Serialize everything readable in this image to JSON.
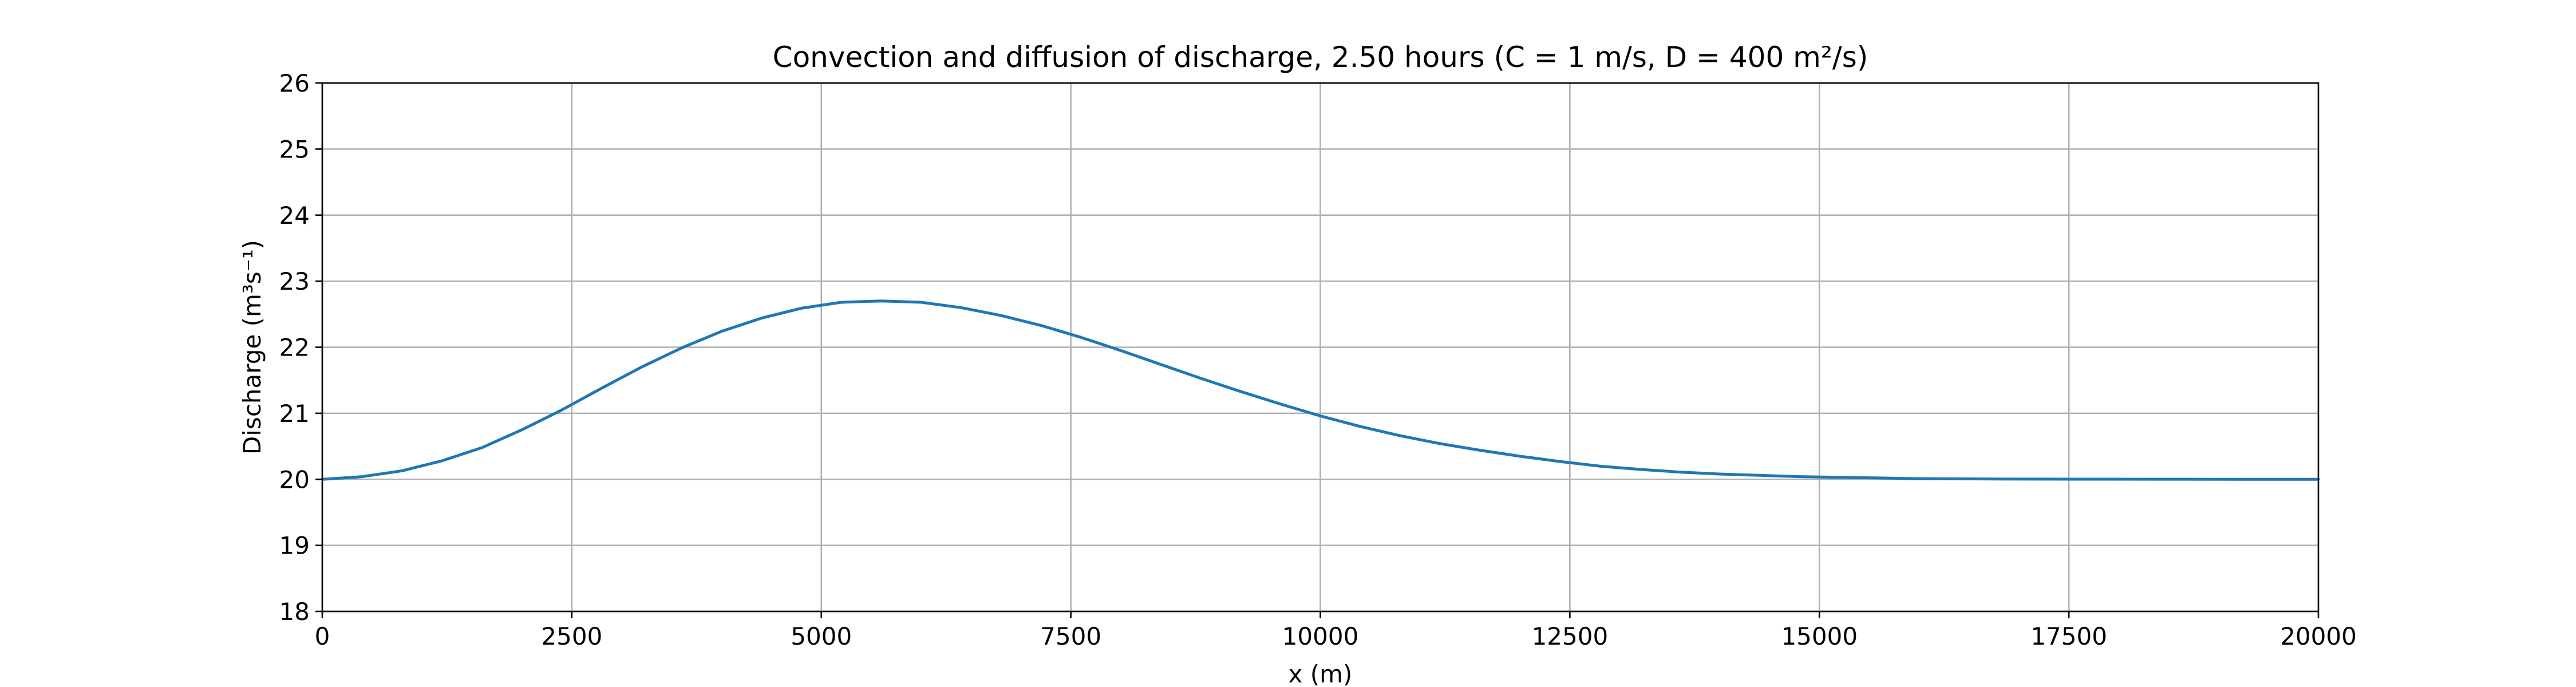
{
  "chart_data": {
    "type": "line",
    "title": "Convection and diffusion of discharge, 2.50 hours (C = 1 m/s, D = 400 m²/s)",
    "xlabel": "x (m)",
    "ylabel": "Discharge (m³s⁻¹)",
    "xlim": [
      0,
      20000
    ],
    "ylim": [
      18,
      26
    ],
    "xticks": [
      0,
      2500,
      5000,
      7500,
      10000,
      12500,
      15000,
      17500,
      20000
    ],
    "xtick_labels": [
      "0",
      "2500",
      "5000",
      "7500",
      "10000",
      "12500",
      "15000",
      "17500",
      "20000"
    ],
    "yticks": [
      18,
      19,
      20,
      21,
      22,
      23,
      24,
      25,
      26
    ],
    "ytick_labels": [
      "18",
      "19",
      "20",
      "21",
      "22",
      "23",
      "24",
      "25",
      "26"
    ],
    "grid": true,
    "colors": {
      "line": "#1f77b4",
      "grid": "#b0b0b0"
    },
    "series": [
      {
        "x": [
          0,
          400,
          800,
          1200,
          1600,
          2000,
          2400,
          2800,
          3200,
          3600,
          4000,
          4400,
          4800,
          5200,
          5600,
          6000,
          6400,
          6800,
          7200,
          7600,
          8000,
          8400,
          8800,
          9200,
          9600,
          10000,
          10400,
          10800,
          11200,
          11600,
          12000,
          12400,
          12800,
          13200,
          13600,
          14000,
          14400,
          14800,
          15200,
          15600,
          16000,
          16800,
          17600,
          18400,
          19200,
          20000
        ],
        "values": [
          20.0,
          20.04,
          20.13,
          20.28,
          20.48,
          20.75,
          21.05,
          21.38,
          21.7,
          21.99,
          22.24,
          22.44,
          22.59,
          22.68,
          22.7,
          22.68,
          22.6,
          22.48,
          22.33,
          22.15,
          21.95,
          21.74,
          21.53,
          21.33,
          21.14,
          20.96,
          20.8,
          20.66,
          20.54,
          20.44,
          20.35,
          20.27,
          20.2,
          20.15,
          20.11,
          20.08,
          20.06,
          20.04,
          20.03,
          20.02,
          20.01,
          20.005,
          20.002,
          20.001,
          20.0,
          20.0
        ]
      }
    ]
  }
}
